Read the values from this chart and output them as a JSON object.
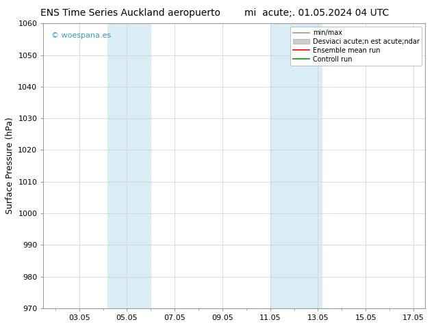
{
  "title_left": "ENS Time Series Auckland aeropuerto",
  "title_right": "mi  acute;. 01.05.2024 04 UTC",
  "ylabel": "Surface Pressure (hPa)",
  "ylim": [
    970,
    1060
  ],
  "yticks": [
    970,
    980,
    990,
    1000,
    1010,
    1020,
    1030,
    1040,
    1050,
    1060
  ],
  "xlim": [
    1.5,
    17.5
  ],
  "xtick_labels": [
    "03.05",
    "05.05",
    "07.05",
    "09.05",
    "11.05",
    "13.05",
    "15.05",
    "17.05"
  ],
  "xtick_positions": [
    3,
    5,
    7,
    9,
    11,
    13,
    15,
    17
  ],
  "shaded_bands": [
    {
      "start": 4.17,
      "end": 6.0
    },
    {
      "start": 11.0,
      "end": 13.17
    }
  ],
  "shaded_color": "#daedf7",
  "watermark": "© woespana.es",
  "watermark_color": "#3399cc",
  "legend_min_max_color": "#999999",
  "legend_std_color": "#cccccc",
  "legend_mean_color": "#ff0000",
  "legend_ctrl_color": "#009900",
  "background_color": "#ffffff",
  "spine_color": "#999999",
  "title_fontsize": 10,
  "ylabel_fontsize": 9,
  "tick_fontsize": 8,
  "watermark_fontsize": 8,
  "legend_fontsize": 7
}
